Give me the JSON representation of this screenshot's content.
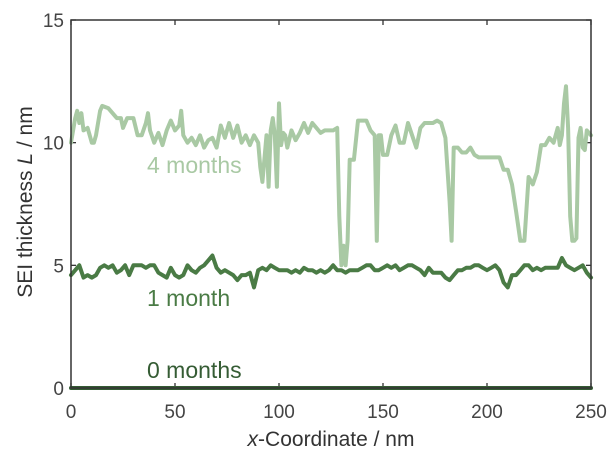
{
  "chart_data": {
    "type": "line",
    "xlabel_var": "x",
    "xlabel_rest": "-Coordinate  /  nm",
    "ylabel_text": "SEI thickness  ",
    "ylabel_var": "L",
    "ylabel_unit": "  /  nm",
    "xlim": [
      0,
      250
    ],
    "ylim": [
      0,
      15
    ],
    "xticks": [
      0,
      50,
      100,
      150,
      200,
      250
    ],
    "yticks": [
      0,
      5,
      10,
      15
    ],
    "xtick_labels": [
      "0",
      "50",
      "100",
      "150",
      "200",
      "250"
    ],
    "ytick_labels": [
      "0",
      "5",
      "10",
      "15"
    ],
    "grid": false,
    "series": [
      {
        "name": "4 months",
        "color": "#a9c9a4",
        "x": [
          0,
          2,
          3,
          4,
          5,
          6,
          8,
          10,
          11,
          12,
          14,
          15,
          18,
          22,
          24,
          25,
          27,
          30,
          32,
          34,
          36,
          37,
          38,
          40,
          42,
          44,
          46,
          48,
          50,
          52,
          53,
          54,
          56,
          58,
          60,
          62,
          64,
          66,
          68,
          70,
          72,
          74,
          76,
          78,
          80,
          82,
          84,
          86,
          88,
          90,
          91,
          92,
          94,
          95,
          96,
          97,
          98,
          99,
          100,
          101,
          102,
          103,
          104,
          106,
          108,
          110,
          112,
          114,
          116,
          118,
          120,
          122,
          124,
          126,
          128,
          129,
          130,
          131,
          132,
          133,
          134,
          136,
          138,
          139,
          140,
          142,
          144,
          146,
          147,
          148,
          149,
          150,
          152,
          154,
          156,
          158,
          160,
          162,
          164,
          166,
          168,
          170,
          172,
          174,
          176,
          178,
          180,
          182,
          183,
          184,
          186,
          188,
          190,
          192,
          194,
          196,
          198,
          200,
          202,
          204,
          206,
          208,
          210,
          212,
          214,
          216,
          218,
          220,
          222,
          224,
          226,
          228,
          230,
          232,
          234,
          235,
          236,
          237,
          238,
          239,
          240,
          241,
          242,
          243,
          244,
          245,
          246,
          247,
          248,
          249,
          250
        ],
        "y": [
          10.0,
          11.0,
          11.3,
          10.8,
          11.2,
          10.5,
          10.6,
          10.0,
          10.0,
          10.3,
          11.3,
          11.5,
          11.4,
          11.0,
          11.0,
          10.6,
          11.0,
          11.0,
          10.3,
          10.3,
          10.8,
          11.2,
          10.5,
          10.0,
          10.4,
          9.9,
          10.5,
          10.9,
          10.5,
          10.7,
          11.3,
          10.3,
          10.0,
          10.2,
          9.9,
          10.3,
          9.8,
          10.1,
          10.2,
          9.8,
          10.7,
          10.2,
          10.8,
          10.2,
          10.7,
          10.0,
          10.3,
          9.9,
          10.3,
          10.0,
          9.0,
          8.4,
          10.3,
          8.2,
          10.5,
          11.0,
          10.3,
          8.2,
          11.6,
          9.9,
          10.4,
          10.3,
          9.8,
          10.5,
          10.1,
          10.4,
          10.8,
          10.4,
          10.8,
          10.6,
          10.4,
          10.5,
          10.5,
          10.5,
          10.6,
          7.0,
          5.0,
          5.8,
          5.0,
          6.0,
          9.3,
          9.3,
          10.9,
          10.9,
          10.9,
          10.9,
          10.5,
          10.3,
          6.0,
          10.3,
          10.3,
          9.5,
          9.5,
          10.3,
          10.7,
          10.0,
          10.0,
          10.8,
          10.3,
          9.8,
          10.6,
          10.8,
          10.8,
          10.8,
          10.9,
          10.8,
          10.2,
          7.6,
          6.0,
          9.8,
          9.8,
          9.6,
          9.6,
          9.8,
          9.5,
          9.4,
          9.4,
          9.4,
          9.4,
          9.4,
          9.4,
          8.9,
          8.9,
          8.3,
          7.2,
          6.0,
          6.0,
          8.6,
          8.3,
          8.8,
          9.9,
          9.9,
          10.2,
          10.0,
          10.6,
          9.9,
          10.3,
          11.6,
          12.3,
          10.6,
          7.0,
          6.0,
          6.0,
          6.1,
          10.2,
          10.6,
          9.8,
          9.7,
          10.5,
          10.4,
          10.3
        ]
      },
      {
        "name": "1 month",
        "color": "#4a7b45",
        "x": [
          0,
          2,
          4,
          6,
          8,
          10,
          12,
          14,
          16,
          18,
          20,
          22,
          24,
          26,
          28,
          30,
          32,
          34,
          36,
          38,
          40,
          42,
          44,
          46,
          48,
          50,
          52,
          54,
          56,
          58,
          60,
          62,
          64,
          66,
          68,
          70,
          72,
          74,
          76,
          78,
          80,
          82,
          84,
          86,
          88,
          90,
          92,
          94,
          96,
          98,
          100,
          102,
          104,
          106,
          108,
          110,
          112,
          114,
          116,
          118,
          120,
          122,
          124,
          126,
          128,
          130,
          132,
          134,
          136,
          138,
          140,
          142,
          144,
          146,
          148,
          150,
          152,
          154,
          156,
          158,
          160,
          162,
          164,
          166,
          168,
          170,
          172,
          174,
          176,
          178,
          180,
          182,
          184,
          186,
          188,
          190,
          192,
          194,
          196,
          198,
          200,
          202,
          204,
          206,
          208,
          210,
          212,
          214,
          216,
          218,
          220,
          222,
          224,
          226,
          228,
          230,
          232,
          234,
          236,
          238,
          240,
          242,
          244,
          246,
          248,
          250
        ],
        "y": [
          4.6,
          4.8,
          5.0,
          4.5,
          4.6,
          4.5,
          4.6,
          4.9,
          5.0,
          4.9,
          5.0,
          4.7,
          4.8,
          5.0,
          4.6,
          5.0,
          5.0,
          5.0,
          4.9,
          5.0,
          5.0,
          4.7,
          4.6,
          4.5,
          4.9,
          4.6,
          4.5,
          4.6,
          5.0,
          4.8,
          4.7,
          4.9,
          5.0,
          5.2,
          5.4,
          4.9,
          4.7,
          4.8,
          4.7,
          4.6,
          4.4,
          4.6,
          4.6,
          4.7,
          4.1,
          4.8,
          4.9,
          4.8,
          5.0,
          4.9,
          4.8,
          4.8,
          4.8,
          4.7,
          4.8,
          4.7,
          4.9,
          4.8,
          4.8,
          4.7,
          4.8,
          4.7,
          4.8,
          5.0,
          4.8,
          4.8,
          4.7,
          4.8,
          4.8,
          4.8,
          4.9,
          5.0,
          5.0,
          4.8,
          4.8,
          4.9,
          5.0,
          4.9,
          5.0,
          4.8,
          4.9,
          5.0,
          5.0,
          4.9,
          4.8,
          4.6,
          4.9,
          4.7,
          4.7,
          4.7,
          4.5,
          4.4,
          4.6,
          4.8,
          4.8,
          4.9,
          4.9,
          5.0,
          5.0,
          4.9,
          4.8,
          4.9,
          5.0,
          4.8,
          4.3,
          4.1,
          4.6,
          4.6,
          4.8,
          5.0,
          5.0,
          4.8,
          4.9,
          4.8,
          4.9,
          4.9,
          4.9,
          4.9,
          5.3,
          5.0,
          4.9,
          4.8,
          4.9,
          5.0,
          4.7,
          4.5
        ]
      },
      {
        "name": "0 months",
        "color": "#355c34",
        "x": [
          0,
          250
        ],
        "y": [
          0.0,
          0.0
        ]
      }
    ]
  }
}
